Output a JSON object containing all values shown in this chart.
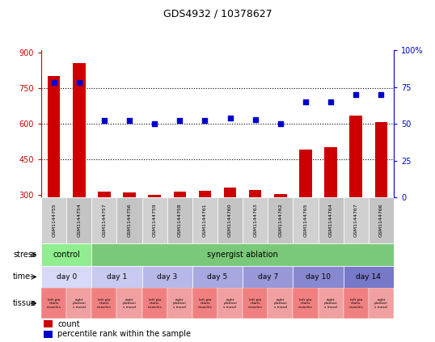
{
  "title": "GDS4932 / 10378627",
  "samples": [
    "GSM1144755",
    "GSM1144754",
    "GSM1144757",
    "GSM1144756",
    "GSM1144759",
    "GSM1144758",
    "GSM1144761",
    "GSM1144760",
    "GSM1144763",
    "GSM1144762",
    "GSM1144765",
    "GSM1144764",
    "GSM1144767",
    "GSM1144766"
  ],
  "counts": [
    800,
    855,
    315,
    312,
    302,
    313,
    318,
    330,
    322,
    305,
    492,
    500,
    635,
    608
  ],
  "percentiles": [
    78,
    78,
    52,
    52,
    50,
    52,
    52,
    54,
    53,
    50,
    65,
    65,
    70,
    70
  ],
  "ylim_left": [
    290,
    910
  ],
  "ylim_right": [
    0,
    100
  ],
  "yticks_left": [
    300,
    450,
    600,
    750,
    900
  ],
  "yticks_right": [
    0,
    25,
    50,
    75,
    100
  ],
  "grid_values": [
    750,
    600,
    450
  ],
  "bar_color": "#cc0000",
  "dot_color": "#0000cc",
  "bg_color": "#ffffff",
  "stress_groups": [
    {
      "label": "control",
      "start": 0,
      "end": 2,
      "color": "#90ee90"
    },
    {
      "label": "synergist ablation",
      "start": 2,
      "end": 14,
      "color": "#7ac97a"
    }
  ],
  "time_colors": [
    "#d8d8f8",
    "#c8c8f0",
    "#b8b8e8",
    "#a8a8e0",
    "#9898d8",
    "#8888d0",
    "#7878c8"
  ],
  "time_groups": [
    {
      "label": "day 0",
      "start": 0,
      "end": 2
    },
    {
      "label": "day 1",
      "start": 2,
      "end": 4
    },
    {
      "label": "day 3",
      "start": 4,
      "end": 6
    },
    {
      "label": "day 5",
      "start": 6,
      "end": 8
    },
    {
      "label": "day 7",
      "start": 8,
      "end": 10
    },
    {
      "label": "day 10",
      "start": 10,
      "end": 12
    },
    {
      "label": "day 14",
      "start": 12,
      "end": 14
    }
  ],
  "tissue_color_left": "#f08080",
  "tissue_color_right": "#f0a0a0",
  "tissue_label_left": "left pla\nntaris\nmuscles",
  "tissue_label_right": "right\nplantari\ns muscl",
  "stress_row_label": "stress",
  "time_row_label": "time",
  "tissue_row_label": "tissue",
  "legend_count": "count",
  "legend_pct": "percentile rank within the sample",
  "n": 14
}
